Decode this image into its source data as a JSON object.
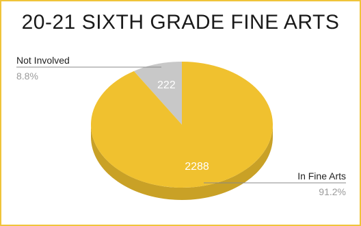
{
  "chart_data": {
    "type": "pie",
    "title": "20-21 SIXTH GRADE FINE ARTS",
    "slices": [
      {
        "name": "Not Involved",
        "value": 222,
        "value_label": "222",
        "percent_label": "8.8%",
        "color": "#c8c8c8",
        "side_color": "#a8a8a8"
      },
      {
        "name": "In Fine Arts",
        "value": 2288,
        "value_label": "2288",
        "percent_label": "91.2%",
        "color": "#f0c12f",
        "side_color": "#c9a126"
      }
    ],
    "style": "3d",
    "legend": "none"
  },
  "colors": {
    "border": "#f0c43a",
    "leader_line": "#888888"
  }
}
